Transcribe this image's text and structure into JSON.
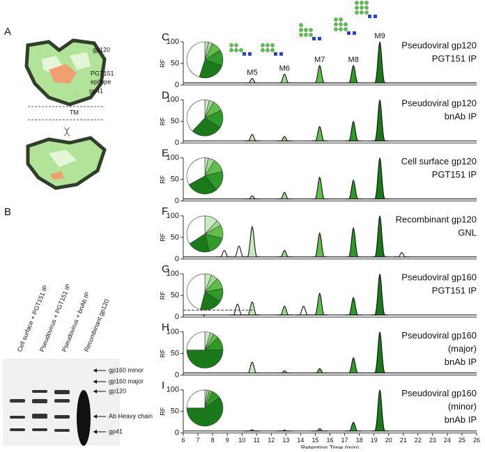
{
  "panel_a": {
    "letter": "A",
    "labels": [
      "gp120",
      "PGT151",
      "epitope",
      "gp41",
      "TM"
    ]
  },
  "panel_b": {
    "letter": "B",
    "lanes": [
      "Cell surface + PGT151 IP",
      "Pseudovirus + PGT151 IP",
      "Pseudovirus + bnAb IP",
      "Recombinant gp120"
    ],
    "bands": [
      "gp160 minor",
      "gp160 major",
      "gp120",
      "Ab Heavy chain",
      "gp41"
    ]
  },
  "chart_data": [
    {
      "type": "line",
      "letter": "C",
      "title": [
        "Pseudoviral gp120",
        "PGT151 IP"
      ],
      "ylabel": "RF",
      "xlim": [
        6,
        26
      ],
      "ylim": [
        0,
        100
      ],
      "yticks": [
        0,
        50,
        100
      ],
      "x": [
        10.7,
        12.9,
        15.3,
        17.6,
        19.4
      ],
      "values": [
        15,
        25,
        45,
        45,
        100
      ],
      "colors": [
        "#c8eac0",
        "#9ed98f",
        "#5fbf4a",
        "#2e9a28",
        "#1a7a1a"
      ],
      "peak_labels": [
        "M5",
        "M6",
        "M7",
        "M8",
        "M9"
      ],
      "pie": {
        "values": [
          3,
          4,
          9,
          14,
          25,
          45
        ],
        "colors": [
          "#c8eac0",
          "#9ed98f",
          "#5fbf4a",
          "#2e9a28",
          "#1a7a1a",
          "#ffffff"
        ]
      }
    },
    {
      "type": "line",
      "letter": "D",
      "title": [
        "Pseudoviral gp120",
        "bnAb IP"
      ],
      "ylabel": "RF",
      "xlim": [
        6,
        26
      ],
      "ylim": [
        0,
        100
      ],
      "yticks": [
        0,
        50,
        100
      ],
      "x": [
        10.7,
        12.9,
        15.3,
        17.6,
        19.4
      ],
      "values": [
        20,
        15,
        38,
        50,
        100
      ],
      "colors": [
        "#c8eac0",
        "#9ed98f",
        "#5fbf4a",
        "#2e9a28",
        "#1a7a1a"
      ],
      "pie": {
        "values": [
          4,
          4,
          10,
          16,
          28,
          38
        ],
        "colors": [
          "#c8eac0",
          "#9ed98f",
          "#5fbf4a",
          "#2e9a28",
          "#1a7a1a",
          "#ffffff"
        ]
      }
    },
    {
      "type": "line",
      "letter": "E",
      "title": [
        "Cell surface gp120",
        "PGT151 IP"
      ],
      "ylabel": "RF",
      "xlim": [
        6,
        26
      ],
      "ylim": [
        0,
        100
      ],
      "yticks": [
        0,
        50,
        100
      ],
      "x": [
        10.7,
        12.9,
        15.3,
        17.6,
        19.4
      ],
      "values": [
        12,
        20,
        55,
        48,
        100
      ],
      "colors": [
        "#c8eac0",
        "#9ed98f",
        "#5fbf4a",
        "#2e9a28",
        "#1a7a1a"
      ],
      "pie": {
        "values": [
          3,
          6,
          12,
          18,
          28,
          33
        ],
        "colors": [
          "#c8eac0",
          "#9ed98f",
          "#5fbf4a",
          "#2e9a28",
          "#1a7a1a",
          "#ffffff"
        ]
      }
    },
    {
      "type": "line",
      "letter": "F",
      "title": [
        "Recombinant gp120",
        "GNL"
      ],
      "ylabel": "RF",
      "xlim": [
        6,
        26
      ],
      "ylim": [
        0,
        100
      ],
      "yticks": [
        0,
        50,
        100
      ],
      "x": [
        8.8,
        9.8,
        10.7,
        12.9,
        15.3,
        17.6,
        19.4,
        20.9
      ],
      "values": [
        20,
        30,
        75,
        20,
        60,
        72,
        100,
        15
      ],
      "colors": [
        "#ffffff",
        "#ffffff",
        "#c8eac0",
        "#9ed98f",
        "#5fbf4a",
        "#2e9a28",
        "#1a7a1a",
        "#ffffff"
      ],
      "pie": {
        "values": [
          12,
          5,
          12,
          17,
          20,
          34
        ],
        "colors": [
          "#c8eac0",
          "#9ed98f",
          "#5fbf4a",
          "#2e9a28",
          "#1a7a1a",
          "#ffffff"
        ]
      }
    },
    {
      "type": "line",
      "letter": "G",
      "title": [
        "Pseudoviral gp160",
        "PGT151 IP"
      ],
      "ylabel": "RF",
      "xlim": [
        6,
        26
      ],
      "ylim": [
        0,
        100
      ],
      "yticks": [
        0,
        50,
        100
      ],
      "x": [
        9.7,
        10.7,
        12.9,
        14.2,
        15.3,
        17.6,
        19.4
      ],
      "values": [
        30,
        35,
        25,
        25,
        55,
        45,
        100
      ],
      "colors": [
        "#ffffff",
        "#c8eac0",
        "#9ed98f",
        "#ffffff",
        "#5fbf4a",
        "#2e9a28",
        "#1a7a1a"
      ],
      "annotation": "*",
      "pie": {
        "values": [
          6,
          6,
          10,
          12,
          20,
          46
        ],
        "colors": [
          "#c8eac0",
          "#9ed98f",
          "#5fbf4a",
          "#2e9a28",
          "#1a7a1a",
          "#ffffff"
        ]
      }
    },
    {
      "type": "line",
      "letter": "H",
      "title": [
        "Pseudoviral gp160",
        "(major)",
        "bnAb IP"
      ],
      "ylabel": "RF",
      "xlim": [
        6,
        26
      ],
      "ylim": [
        0,
        100
      ],
      "yticks": [
        0,
        50,
        100
      ],
      "x": [
        10.7,
        12.9,
        15.3,
        17.6,
        19.4
      ],
      "values": [
        30,
        10,
        15,
        40,
        100
      ],
      "colors": [
        "#c8eac0",
        "#9ed98f",
        "#5fbf4a",
        "#2e9a28",
        "#1a7a1a"
      ],
      "pie": {
        "values": [
          5,
          3,
          5,
          12,
          50,
          25
        ],
        "colors": [
          "#c8eac0",
          "#9ed98f",
          "#5fbf4a",
          "#2e9a28",
          "#1a7a1a",
          "#ffffff"
        ]
      }
    },
    {
      "type": "line",
      "letter": "I",
      "title": [
        "Pseudoviral gp160",
        "(minor)",
        "bnAb IP"
      ],
      "ylabel": "RF",
      "xlim": [
        6,
        26
      ],
      "ylim": [
        0,
        100
      ],
      "yticks": [
        0,
        50,
        100
      ],
      "x": [
        10.7,
        12.9,
        15.3,
        17.6,
        19.4
      ],
      "values": [
        8,
        7,
        10,
        25,
        100
      ],
      "colors": [
        "#c8eac0",
        "#9ed98f",
        "#5fbf4a",
        "#2e9a28",
        "#1a7a1a"
      ],
      "xticks": [
        6,
        7,
        8,
        9,
        10,
        11,
        12,
        13,
        14,
        15,
        16,
        17,
        18,
        19,
        20,
        21,
        22,
        23,
        24,
        25,
        26
      ],
      "xlabel": "Retention Time (min)",
      "pie": {
        "values": [
          2,
          2,
          3,
          8,
          60,
          25
        ],
        "colors": [
          "#c8eac0",
          "#9ed98f",
          "#5fbf4a",
          "#2e9a28",
          "#1a7a1a",
          "#ffffff"
        ]
      }
    }
  ]
}
